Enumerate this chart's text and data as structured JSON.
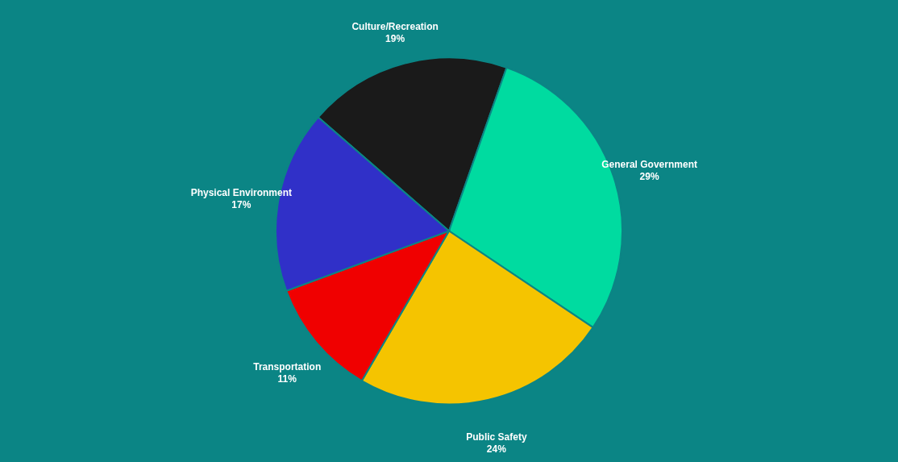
{
  "chart_data": {
    "type": "pie",
    "categories": [
      "Culture/Recreation",
      "General Government",
      "Public Safety",
      "Transportation",
      "Physical Environment"
    ],
    "values": [
      19,
      29,
      24,
      11,
      17
    ],
    "value_labels": [
      "19%",
      "29%",
      "24%",
      "11%",
      "17%"
    ],
    "colors": [
      "#1a1a1a",
      "#00dba0",
      "#f5c400",
      "#f00000",
      "#3030c8"
    ]
  }
}
